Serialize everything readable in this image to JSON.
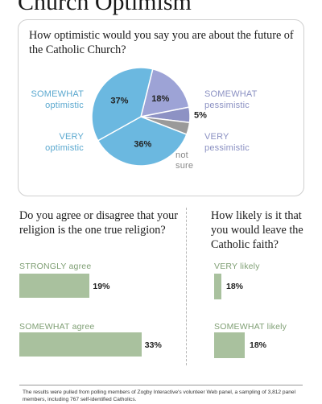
{
  "title": "Church Optimism",
  "chart_data": [
    {
      "type": "pie",
      "title": "How optimistic would you say you are about the future of the Catholic Church?",
      "slices": [
        {
          "label": "SOMEWHAT optimistic",
          "value": 37,
          "value_label": "37%",
          "color": "#6bb8e0"
        },
        {
          "label": "SOMEWHAT pessimistic",
          "value": 18,
          "value_label": "18%",
          "color": "#9da3d6"
        },
        {
          "label": "VERY pessimistic",
          "value": 5,
          "value_label": "5%",
          "color": "#8d92c4"
        },
        {
          "label": "not sure",
          "value": 4,
          "value_label": "",
          "color": "#9a9a9a"
        },
        {
          "label": "VERY optimistic",
          "value": 36,
          "value_label": "36%",
          "color": "#6bb8e0"
        }
      ]
    },
    {
      "type": "bar",
      "title": "Do you agree or disagree that your religion is the one true religion?",
      "categories": [
        "STRONGLY agree",
        "SOMEWHAT agree"
      ],
      "values": [
        19,
        33
      ],
      "value_labels": [
        "19%",
        "33%"
      ],
      "color": "#a9c19e"
    },
    {
      "type": "bar",
      "title": "How likely is it that you would leave the Catholic faith?",
      "categories": [
        "VERY likely",
        "SOMEWHAT likely"
      ],
      "values": [
        18,
        18
      ],
      "value_labels": [
        "18%",
        "18%"
      ],
      "color": "#a9c19e"
    }
  ],
  "pie_labels": {
    "somewhat_opt": [
      "SOMEWHAT",
      "optimistic"
    ],
    "very_opt": [
      "VERY",
      "optimistic"
    ],
    "somewhat_pess": [
      "SOMEWHAT",
      "pessimistic"
    ],
    "very_pess": [
      "VERY",
      "pessimistic"
    ],
    "not_sure": [
      "not",
      "sure"
    ]
  },
  "footnote": "The results were pulled from polling members of Zogby Interactive's volunteer Web panel, a sampling of 3,812 panel members, including 767 self-identified Catholics."
}
